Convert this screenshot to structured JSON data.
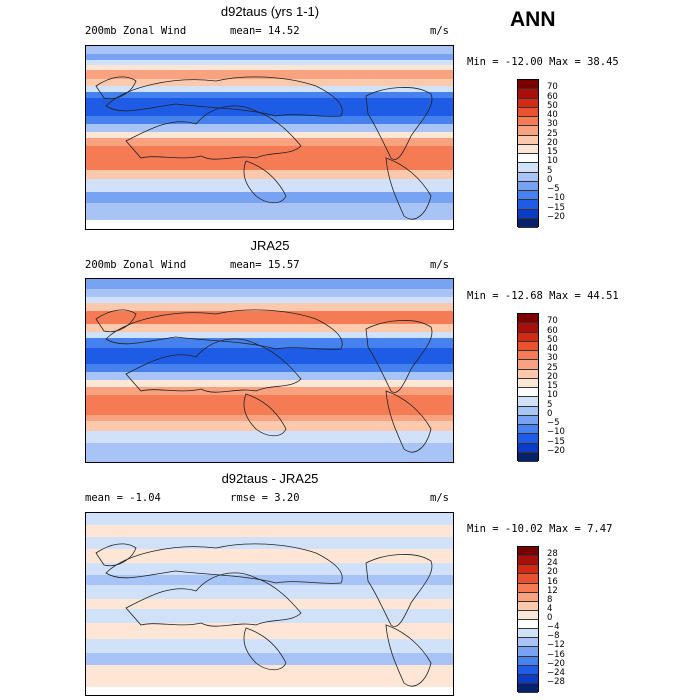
{
  "season": "ANN",
  "colors": {
    "wind_scale": [
      "#08216b",
      "#0c3cc4",
      "#1e5ce6",
      "#4682ee",
      "#78a2f2",
      "#a8c4f6",
      "#d2e1fa",
      "#ffffff",
      "#fde6d6",
      "#fcc9ac",
      "#f9a27f",
      "#f57b55",
      "#e9512f",
      "#d42a13",
      "#a90f0a",
      "#7a0000"
    ],
    "diff_scale": [
      "#08216b",
      "#0c3cc4",
      "#1e5ce6",
      "#4682ee",
      "#78a2f2",
      "#a8c4f6",
      "#d2e1fa",
      "#ffffff",
      "#fde6d6",
      "#fcc9ac",
      "#f9a27f",
      "#f57b55",
      "#e9512f",
      "#d42a13",
      "#a90f0a",
      "#7a0000"
    ]
  },
  "panels": [
    {
      "title": "d92taus (yrs 1-1)",
      "left_label": "200mb Zonal Wind",
      "mid_label": "mean=  14.52",
      "units": "m/s",
      "minmax": "Min = -12.00  Max =   38.45",
      "levels": [
        "70",
        "60",
        "50",
        "40",
        "30",
        "25",
        "20",
        "15",
        "10",
        "5",
        "0",
        "−5",
        "−10",
        "−15",
        "−20"
      ],
      "bands": [
        {
          "c": "#a8c4f6",
          "h": 8
        },
        {
          "c": "#78a2f2",
          "h": 6
        },
        {
          "c": "#d2e1fa",
          "h": 5
        },
        {
          "c": "#fde6d6",
          "h": 5
        },
        {
          "c": "#f9a27f",
          "h": 9
        },
        {
          "c": "#fcc9ac",
          "h": 7
        },
        {
          "c": "#d2e1fa",
          "h": 6
        },
        {
          "c": "#4682ee",
          "h": 6
        },
        {
          "c": "#1e5ce6",
          "h": 18
        },
        {
          "c": "#4682ee",
          "h": 8
        },
        {
          "c": "#a8c4f6",
          "h": 8
        },
        {
          "c": "#fde6d6",
          "h": 6
        },
        {
          "c": "#f9a27f",
          "h": 8
        },
        {
          "c": "#f57b55",
          "h": 24
        },
        {
          "c": "#fcc9ac",
          "h": 9
        },
        {
          "c": "#d2e1fa",
          "h": 13
        },
        {
          "c": "#78a2f2",
          "h": 11
        },
        {
          "c": "#a8c4f6",
          "h": 17
        }
      ]
    },
    {
      "title": "JRA25",
      "left_label": "200mb Zonal Wind",
      "mid_label": "mean=  15.57",
      "units": "m/s",
      "minmax": "Min = -12.68  Max =   44.51",
      "levels": [
        "70",
        "60",
        "50",
        "40",
        "30",
        "25",
        "20",
        "15",
        "10",
        "5",
        "0",
        "−5",
        "−10",
        "−15",
        "−20"
      ],
      "bands": [
        {
          "c": "#78a2f2",
          "h": 10
        },
        {
          "c": "#a8c4f6",
          "h": 8
        },
        {
          "c": "#d2e1fa",
          "h": 6
        },
        {
          "c": "#fcc9ac",
          "h": 8
        },
        {
          "c": "#f57b55",
          "h": 13
        },
        {
          "c": "#fcc9ac",
          "h": 8
        },
        {
          "c": "#d2e1fa",
          "h": 6
        },
        {
          "c": "#4682ee",
          "h": 10
        },
        {
          "c": "#1e5ce6",
          "h": 16
        },
        {
          "c": "#4682ee",
          "h": 8
        },
        {
          "c": "#a8c4f6",
          "h": 8
        },
        {
          "c": "#fde6d6",
          "h": 7
        },
        {
          "c": "#f9a27f",
          "h": 8
        },
        {
          "c": "#f57b55",
          "h": 20
        },
        {
          "c": "#f9a27f",
          "h": 6
        },
        {
          "c": "#fcc9ac",
          "h": 10
        },
        {
          "c": "#d2e1fa",
          "h": 12
        },
        {
          "c": "#a8c4f6",
          "h": 21
        }
      ]
    },
    {
      "title": "d92taus - JRA25",
      "left_label": "mean =   -1.04",
      "mid_label": "rmse =    3.20",
      "units": "m/s",
      "minmax": "Min = -10.02  Max =    7.47",
      "levels": [
        "28",
        "24",
        "20",
        "16",
        "12",
        "8",
        "4",
        "0",
        "−4",
        "−8",
        "−12",
        "−16",
        "−20",
        "−24",
        "−28"
      ],
      "bands": [
        {
          "c": "#d2e1fa",
          "h": 12
        },
        {
          "c": "#fde6d6",
          "h": 12
        },
        {
          "c": "#d2e1fa",
          "h": 12
        },
        {
          "c": "#fde6d6",
          "h": 14
        },
        {
          "c": "#d2e1fa",
          "h": 12
        },
        {
          "c": "#a8c4f6",
          "h": 10
        },
        {
          "c": "#d2e1fa",
          "h": 14
        },
        {
          "c": "#fde6d6",
          "h": 10
        },
        {
          "c": "#d2e1fa",
          "h": 14
        },
        {
          "c": "#fde6d6",
          "h": 16
        },
        {
          "c": "#d2e1fa",
          "h": 14
        },
        {
          "c": "#a8c4f6",
          "h": 12
        },
        {
          "c": "#fde6d6",
          "h": 22
        }
      ]
    }
  ],
  "chart_data": [
    {
      "type": "heatmap",
      "title": "d92taus (yrs 1-1)",
      "subtitle": "200mb Zonal Wind",
      "mean": 14.52,
      "units": "m/s",
      "min": -12.0,
      "max": 38.45,
      "colorbar_levels": [
        -20,
        -15,
        -10,
        -5,
        0,
        5,
        10,
        15,
        20,
        25,
        30,
        40,
        50,
        60,
        70
      ]
    },
    {
      "type": "heatmap",
      "title": "JRA25",
      "subtitle": "200mb Zonal Wind",
      "mean": 15.57,
      "units": "m/s",
      "min": -12.68,
      "max": 44.51,
      "colorbar_levels": [
        -20,
        -15,
        -10,
        -5,
        0,
        5,
        10,
        15,
        20,
        25,
        30,
        40,
        50,
        60,
        70
      ]
    },
    {
      "type": "heatmap",
      "title": "d92taus - JRA25",
      "mean": -1.04,
      "rmse": 3.2,
      "units": "m/s",
      "min": -10.02,
      "max": 7.47,
      "colorbar_levels": [
        -28,
        -24,
        -20,
        -16,
        -12,
        -8,
        -4,
        0,
        4,
        8,
        12,
        16,
        20,
        24,
        28
      ]
    }
  ]
}
